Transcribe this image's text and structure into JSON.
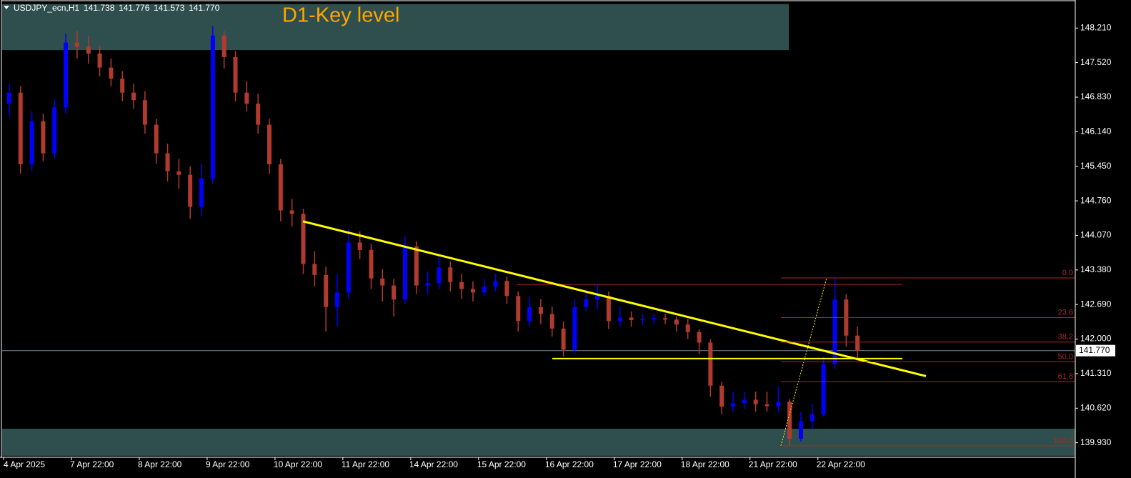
{
  "chart_data": {
    "type": "candlestick",
    "title": "USDJPY_ecn,H1",
    "quote": [
      "141.738",
      "141.776",
      "141.573",
      "141.770"
    ],
    "annotation": "D1-Key level",
    "up_color": "#0000ff",
    "down_color": "#b03a2e",
    "categories": [
      "4 Apr 2025",
      null,
      null,
      null,
      null,
      null,
      "7 Apr 22:00",
      null,
      null,
      null,
      null,
      null,
      "8 Apr 22:00",
      null,
      null,
      null,
      null,
      null,
      "9 Apr 22:00",
      null,
      null,
      null,
      null,
      null,
      "10 Apr 22:00",
      null,
      null,
      null,
      null,
      null,
      "11 Apr 22:00",
      null,
      null,
      null,
      null,
      null,
      "14 Apr 22:00",
      null,
      null,
      null,
      null,
      null,
      "15 Apr 22:00",
      null,
      null,
      null,
      null,
      null,
      "16 Apr 22:00",
      null,
      null,
      null,
      null,
      null,
      "17 Apr 22:00",
      null,
      null,
      null,
      null,
      null,
      "18 Apr 22:00",
      null,
      null,
      null,
      null,
      null,
      "21 Apr 22:00",
      null,
      null,
      null,
      null,
      null,
      "22 Apr 22:00",
      null,
      null,
      null
    ],
    "open": [
      146.7,
      146.92,
      145.49,
      146.35,
      145.71,
      146.63,
      147.92,
      147.84,
      147.7,
      147.42,
      147.2,
      146.92,
      146.77,
      146.28,
      145.71,
      145.35,
      145.28,
      144.64,
      145.21,
      148.06,
      147.63,
      146.92,
      146.7,
      146.28,
      145.49,
      144.57,
      144.5,
      143.5,
      143.28,
      142.64,
      142.93,
      143.93,
      143.78,
      143.21,
      143.07,
      142.79,
      143.85,
      143.07,
      143.12,
      143.43,
      143.14,
      143.0,
      142.93,
      143.05,
      143.16,
      142.86,
      142.36,
      142.64,
      142.5,
      142.21,
      141.79,
      142.64,
      142.79,
      142.86,
      142.36,
      142.43,
      142.38,
      142.4,
      142.42,
      142.39,
      142.29,
      142.14,
      141.93,
      141.07,
      140.65,
      140.72,
      140.79,
      140.7,
      140.66,
      140.75,
      140.01,
      140.36,
      140.5,
      141.5,
      142.79,
      142.07
    ],
    "high": [
      147.1,
      147.05,
      146.55,
      146.5,
      146.8,
      148.1,
      148.15,
      148.05,
      147.85,
      147.6,
      147.35,
      147.1,
      146.95,
      146.4,
      145.9,
      145.6,
      145.45,
      145.5,
      148.25,
      148.15,
      147.75,
      147.15,
      146.9,
      146.4,
      145.6,
      144.8,
      144.6,
      143.75,
      143.45,
      143.3,
      144.2,
      144.15,
      143.9,
      143.4,
      143.2,
      144.05,
      143.95,
      143.35,
      143.65,
      143.55,
      143.3,
      143.15,
      143.2,
      143.3,
      143.25,
      142.95,
      142.85,
      142.8,
      142.65,
      142.35,
      142.8,
      143.0,
      143.1,
      142.95,
      142.65,
      142.55,
      142.5,
      142.52,
      142.5,
      142.45,
      142.4,
      142.2,
      142.0,
      141.15,
      140.95,
      140.95,
      140.95,
      140.95,
      141.05,
      140.8,
      140.55,
      140.7,
      141.65,
      143.22,
      142.9,
      142.25
    ],
    "low": [
      146.45,
      145.3,
      145.35,
      145.55,
      145.6,
      146.5,
      147.6,
      147.5,
      147.25,
      147.05,
      146.75,
      146.6,
      146.1,
      145.5,
      145.15,
      145.0,
      144.4,
      144.45,
      145.1,
      147.4,
      146.75,
      146.55,
      146.1,
      145.3,
      144.35,
      144.25,
      143.3,
      143.05,
      142.15,
      142.25,
      142.8,
      143.6,
      143.0,
      142.75,
      142.45,
      142.7,
      142.9,
      142.9,
      143.0,
      142.95,
      142.8,
      142.75,
      142.85,
      142.95,
      142.7,
      142.15,
      142.25,
      142.3,
      142.05,
      141.65,
      141.7,
      142.55,
      142.6,
      142.2,
      142.25,
      142.25,
      142.28,
      142.3,
      142.3,
      142.15,
      142.0,
      141.7,
      140.85,
      140.5,
      140.55,
      140.6,
      140.55,
      140.55,
      140.55,
      139.87,
      139.95,
      140.2,
      140.45,
      141.4,
      141.85,
      141.57
    ],
    "close": [
      146.92,
      145.49,
      146.35,
      145.71,
      146.63,
      147.92,
      147.84,
      147.7,
      147.42,
      147.2,
      146.92,
      146.77,
      146.28,
      145.71,
      145.35,
      145.28,
      144.64,
      145.21,
      148.06,
      147.63,
      146.92,
      146.7,
      146.28,
      145.49,
      144.57,
      144.5,
      143.5,
      143.28,
      142.64,
      142.93,
      143.93,
      143.78,
      143.21,
      143.07,
      142.79,
      143.85,
      143.07,
      143.12,
      143.43,
      143.14,
      143.0,
      142.93,
      143.05,
      143.16,
      142.86,
      142.36,
      142.64,
      142.5,
      142.21,
      141.79,
      142.64,
      142.79,
      142.86,
      142.36,
      142.43,
      142.38,
      142.4,
      142.42,
      142.39,
      142.29,
      142.14,
      141.93,
      141.07,
      140.65,
      140.72,
      140.79,
      140.7,
      140.66,
      140.75,
      140.01,
      140.36,
      140.5,
      141.5,
      142.79,
      142.07,
      141.77
    ],
    "ylim": [
      139.64,
      148.77
    ],
    "yticks": [
      {
        "value": 148.21,
        "label": "148.210"
      },
      {
        "value": 147.52,
        "label": "147.520"
      },
      {
        "value": 146.83,
        "label": "146.830"
      },
      {
        "value": 146.14,
        "label": "146.140"
      },
      {
        "value": 145.45,
        "label": "145.450"
      },
      {
        "value": 144.76,
        "label": "144.760"
      },
      {
        "value": 144.07,
        "label": "144.070"
      },
      {
        "value": 143.38,
        "label": "143.380"
      },
      {
        "value": 142.69,
        "label": "142.690"
      },
      {
        "value": 142.0,
        "label": "142.000"
      },
      {
        "value": 141.31,
        "label": "141.310"
      },
      {
        "value": 140.62,
        "label": "140.620"
      },
      {
        "value": 139.93,
        "label": "139.930"
      }
    ],
    "current_price": {
      "value": 141.77,
      "label": "141.770"
    },
    "zones": [
      {
        "from": 147.77,
        "to": 148.69,
        "color": "#2f4f4f"
      },
      {
        "from": 139.67,
        "to": 140.21,
        "color": "#2f4f4f"
      }
    ],
    "trendline": {
      "from": 144.35,
      "to": 141.26,
      "color": "#ffff00"
    },
    "support_line": {
      "value": 141.61,
      "color": "#ffff00"
    },
    "resistance_line": {
      "value": 143.09,
      "color": "#b22222"
    },
    "fibonacci": {
      "high": 143.22,
      "low": 139.87,
      "color": "#a52a2a",
      "levels": [
        {
          "value": 0,
          "label": "0.0"
        },
        {
          "value": 23.6,
          "label": "23.6"
        },
        {
          "value": 38.2,
          "label": "38.2"
        },
        {
          "value": 50,
          "label": "50.0"
        },
        {
          "value": 61.8,
          "label": "61.8"
        },
        {
          "value": 100,
          "label": "100.0"
        }
      ]
    }
  }
}
